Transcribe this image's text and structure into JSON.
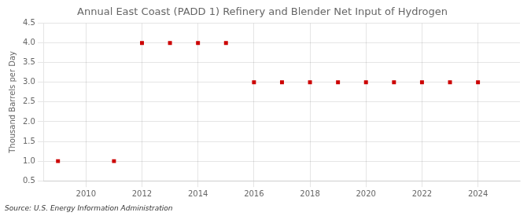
{
  "chart_data": {
    "type": "scatter",
    "title": "Annual East Coast (PADD 1) Refinery and Blender Net Input of Hydrogen",
    "ylabel": "Thousand Barrels per Day",
    "annotation": "Source: U.S. Energy Information Administration",
    "x": [
      2009,
      2011,
      2012,
      2013,
      2014,
      2015,
      2016,
      2017,
      2018,
      2019,
      2020,
      2021,
      2022,
      2023,
      2024
    ],
    "values": [
      1.0,
      1.0,
      4.0,
      4.0,
      4.0,
      4.0,
      3.0,
      3.0,
      3.0,
      3.0,
      3.0,
      3.0,
      3.0,
      3.0,
      3.0
    ],
    "color": "#cc0000",
    "marker": "square",
    "xlim": [
      2008.5,
      2025.5
    ],
    "xticks": [
      2010,
      2012,
      2014,
      2016,
      2018,
      2020,
      2022,
      2024
    ],
    "ylim": [
      0.5,
      4.5
    ],
    "yticks": [
      0.5,
      {
        "value": 1.0,
        "label": "1.0"
      },
      1.5,
      {
        "value": 2.0,
        "label": "2.0"
      },
      2.5,
      {
        "value": 3.0,
        "label": "3.0"
      },
      3.5,
      {
        "value": 4.0,
        "label": "4.0"
      },
      4.5
    ],
    "grid": true
  }
}
